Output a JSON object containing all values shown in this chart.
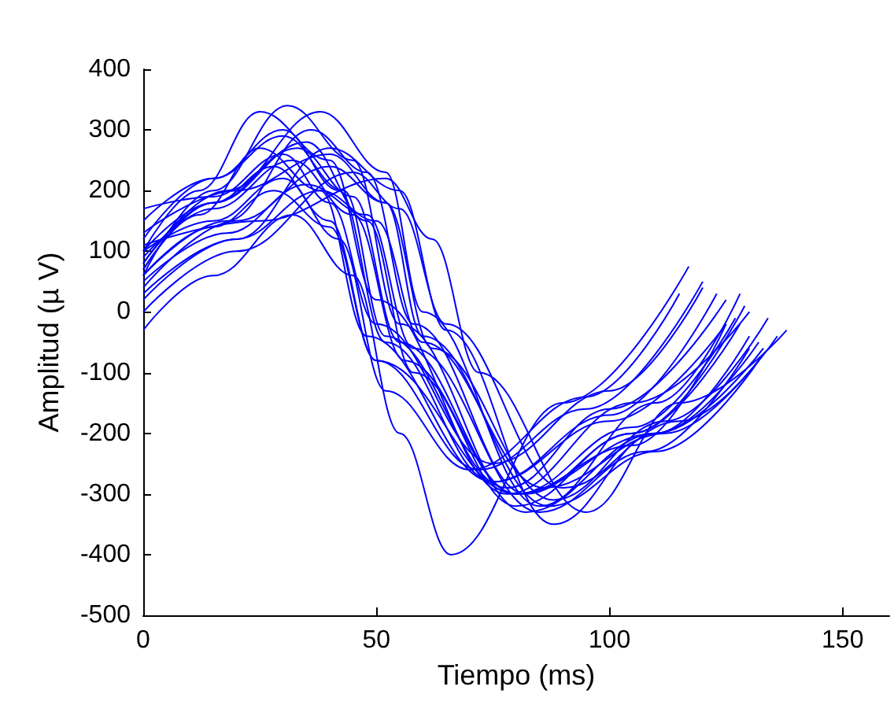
{
  "chart_data": {
    "type": "line",
    "xlabel": "Tiempo (ms)",
    "ylabel": "Amplitud (µ V)",
    "xlim": [
      0,
      160
    ],
    "xticks": [
      0,
      50,
      100,
      150
    ],
    "ylim": [
      -500,
      400
    ],
    "yticks": [
      -500,
      -400,
      -300,
      -200,
      -100,
      0,
      100,
      200,
      300,
      400
    ],
    "grid": false,
    "marker": "none",
    "line_style": "solid",
    "series": [
      {
        "color": "#0000ff",
        "x": [
          0,
          15,
          32,
          45,
          55,
          66,
          90,
          117
        ],
        "values": [
          -30,
          60,
          160,
          60,
          -200,
          -400,
          -150,
          75
        ]
      },
      {
        "color": "#0000ff",
        "x": [
          0,
          12,
          25,
          40,
          50,
          78,
          105,
          130
        ],
        "values": [
          100,
          200,
          330,
          250,
          20,
          -300,
          -150,
          0
        ]
      },
      {
        "color": "#0000ff",
        "x": [
          0,
          15,
          31,
          45,
          55,
          82,
          110,
          133
        ],
        "values": [
          60,
          200,
          340,
          250,
          -20,
          -330,
          -200,
          -60
        ]
      },
      {
        "color": "#0000ff",
        "x": [
          0,
          18,
          38,
          52,
          60,
          85,
          110,
          128
        ],
        "values": [
          80,
          200,
          330,
          230,
          0,
          -320,
          -150,
          30
        ]
      },
      {
        "color": "#0000ff",
        "x": [
          0,
          15,
          30,
          42,
          52,
          75,
          100,
          125
        ],
        "values": [
          150,
          220,
          300,
          200,
          -50,
          -280,
          -180,
          -20
        ]
      },
      {
        "color": "#0000ff",
        "x": [
          0,
          20,
          40,
          55,
          65,
          88,
          110,
          132
        ],
        "values": [
          20,
          120,
          270,
          200,
          -30,
          -350,
          -200,
          -50
        ]
      },
      {
        "color": "#0000ff",
        "x": [
          0,
          25,
          52,
          62,
          72,
          95,
          115,
          138
        ],
        "values": [
          110,
          150,
          220,
          120,
          -100,
          -330,
          -150,
          -30
        ]
      },
      {
        "color": "#0000ff",
        "x": [
          0,
          15,
          35,
          48,
          58,
          80,
          105,
          129
        ],
        "values": [
          70,
          180,
          280,
          150,
          -100,
          -320,
          -200,
          10
        ]
      },
      {
        "color": "#0000ff",
        "x": [
          0,
          15,
          30,
          40,
          50,
          75,
          100,
          120
        ],
        "values": [
          170,
          190,
          260,
          180,
          -20,
          -250,
          -130,
          40
        ]
      },
      {
        "color": "#0000ff",
        "x": [
          0,
          15,
          32,
          45,
          56,
          80,
          110,
          130
        ],
        "values": [
          90,
          170,
          250,
          160,
          -80,
          -300,
          -200,
          -40
        ]
      },
      {
        "color": "#0000ff",
        "x": [
          0,
          20,
          40,
          52,
          62,
          88,
          112,
          134
        ],
        "values": [
          40,
          150,
          240,
          180,
          -60,
          -310,
          -180,
          -10
        ]
      },
      {
        "color": "#0000ff",
        "x": [
          0,
          15,
          30,
          43,
          52,
          78,
          100,
          125
        ],
        "values": [
          120,
          220,
          290,
          200,
          -40,
          -290,
          -160,
          20
        ]
      },
      {
        "color": "#0000ff",
        "x": [
          0,
          15,
          28,
          40,
          50,
          72,
          95,
          120
        ],
        "values": [
          100,
          180,
          240,
          150,
          -80,
          -260,
          -160,
          50
        ]
      },
      {
        "color": "#0000ff",
        "x": [
          0,
          18,
          35,
          48,
          58,
          85,
          108,
          130
        ],
        "values": [
          50,
          130,
          210,
          160,
          -60,
          -330,
          -230,
          -60
        ]
      },
      {
        "color": "#0000ff",
        "x": [
          0,
          15,
          33,
          45,
          55,
          80,
          105,
          127
        ],
        "values": [
          80,
          180,
          270,
          190,
          -50,
          -300,
          -190,
          -10
        ]
      },
      {
        "color": "#0000ff",
        "x": [
          0,
          20,
          45,
          55,
          65,
          90,
          115,
          136
        ],
        "values": [
          0,
          100,
          230,
          170,
          -20,
          -290,
          -180,
          -40
        ]
      },
      {
        "color": "#0000ff",
        "x": [
          0,
          12,
          25,
          38,
          48,
          75,
          100,
          123
        ],
        "values": [
          70,
          160,
          270,
          200,
          -40,
          -280,
          -170,
          30
        ]
      },
      {
        "color": "#0000ff",
        "x": [
          0,
          18,
          36,
          48,
          58,
          82,
          105,
          128
        ],
        "values": [
          60,
          150,
          300,
          230,
          -20,
          -300,
          -200,
          -20
        ]
      },
      {
        "color": "#0000ff",
        "x": [
          0,
          15,
          30,
          42,
          52,
          70,
          95,
          115
        ],
        "values": [
          100,
          150,
          220,
          120,
          -130,
          -260,
          -140,
          30
        ]
      },
      {
        "color": "#0000ff",
        "x": [
          0,
          20,
          40,
          52,
          60,
          87,
          110,
          132
        ],
        "values": [
          130,
          200,
          260,
          180,
          -40,
          -320,
          -230,
          -80
        ]
      },
      {
        "color": "#0000ff",
        "x": [
          0,
          15,
          28,
          40,
          50,
          80,
          105,
          125
        ],
        "values": [
          60,
          140,
          200,
          140,
          -80,
          -300,
          -220,
          -20
        ]
      },
      {
        "color": "#0000ff",
        "x": [
          0,
          20,
          38,
          50,
          60,
          86,
          112,
          133
        ],
        "values": [
          30,
          120,
          200,
          150,
          -50,
          -290,
          -200,
          -70
        ]
      }
    ]
  }
}
